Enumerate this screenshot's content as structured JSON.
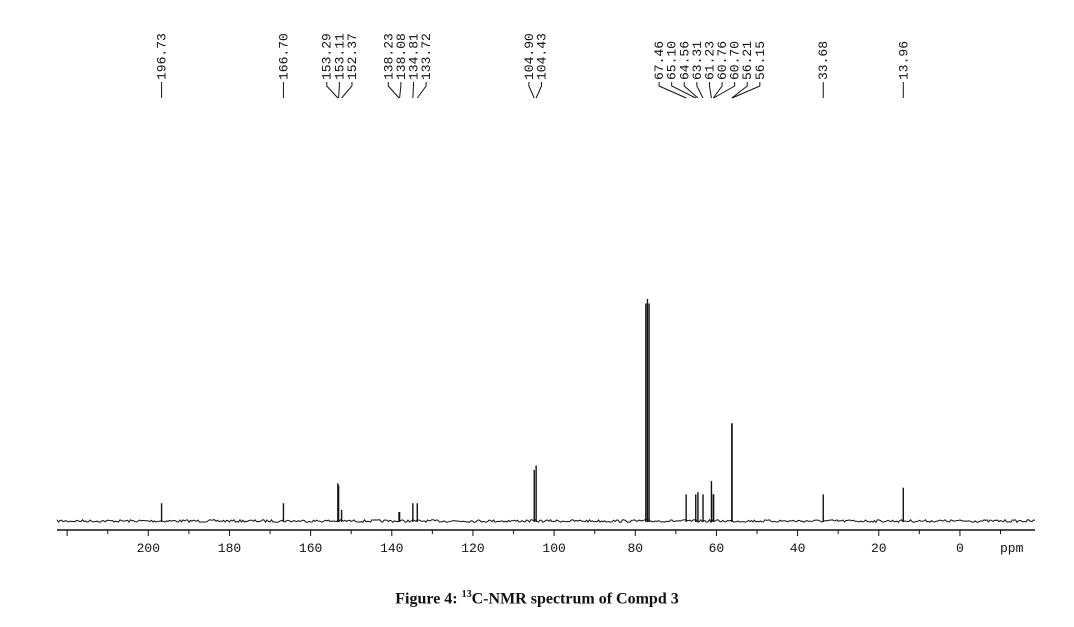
{
  "chart_data": {
    "type": "line",
    "x_unit_label": "ppm",
    "x_ticks": [
      200,
      180,
      160,
      140,
      120,
      100,
      80,
      60,
      40,
      20,
      0
    ],
    "x_range": [
      222.5,
      -18.5
    ],
    "peak_labels": [
      "196.73",
      "166.70",
      "153.29",
      "153.11",
      "152.37",
      "138.23",
      "138.08",
      "134.81",
      "133.72",
      "104.90",
      "104.43",
      "67.46",
      "65.10",
      "64.56",
      "63.31",
      "61.23",
      "60.76",
      "60.70",
      "56.21",
      "56.15",
      "33.68",
      "13.96"
    ],
    "peaks": [
      {
        "ppm": 196.73,
        "intensity": 0.08
      },
      {
        "ppm": 166.7,
        "intensity": 0.08
      },
      {
        "ppm": 153.29,
        "intensity": 0.17
      },
      {
        "ppm": 153.11,
        "intensity": 0.16
      },
      {
        "ppm": 152.37,
        "intensity": 0.05
      },
      {
        "ppm": 138.23,
        "intensity": 0.04
      },
      {
        "ppm": 138.08,
        "intensity": 0.04
      },
      {
        "ppm": 134.81,
        "intensity": 0.08
      },
      {
        "ppm": 133.72,
        "intensity": 0.08
      },
      {
        "ppm": 104.9,
        "intensity": 0.23
      },
      {
        "ppm": 104.43,
        "intensity": 0.25
      },
      {
        "ppm": 77.4,
        "intensity": 0.98
      },
      {
        "ppm": 77.0,
        "intensity": 1.0
      },
      {
        "ppm": 76.6,
        "intensity": 0.98
      },
      {
        "ppm": 67.46,
        "intensity": 0.12
      },
      {
        "ppm": 65.1,
        "intensity": 0.12
      },
      {
        "ppm": 64.56,
        "intensity": 0.13
      },
      {
        "ppm": 63.31,
        "intensity": 0.12
      },
      {
        "ppm": 61.23,
        "intensity": 0.18
      },
      {
        "ppm": 60.76,
        "intensity": 0.12
      },
      {
        "ppm": 60.7,
        "intensity": 0.12
      },
      {
        "ppm": 56.21,
        "intensity": 0.44
      },
      {
        "ppm": 56.15,
        "intensity": 0.44
      },
      {
        "ppm": 33.68,
        "intensity": 0.12
      },
      {
        "ppm": 13.96,
        "intensity": 0.15
      }
    ],
    "grid": false,
    "legend": "none"
  },
  "figure": {
    "caption_prefix": "Figure 4: ",
    "caption_isotope": "13",
    "caption_rest": "C-NMR spectrum of Compd 3"
  },
  "colors": {
    "ink": "#111111",
    "background": "#ffffff"
  }
}
